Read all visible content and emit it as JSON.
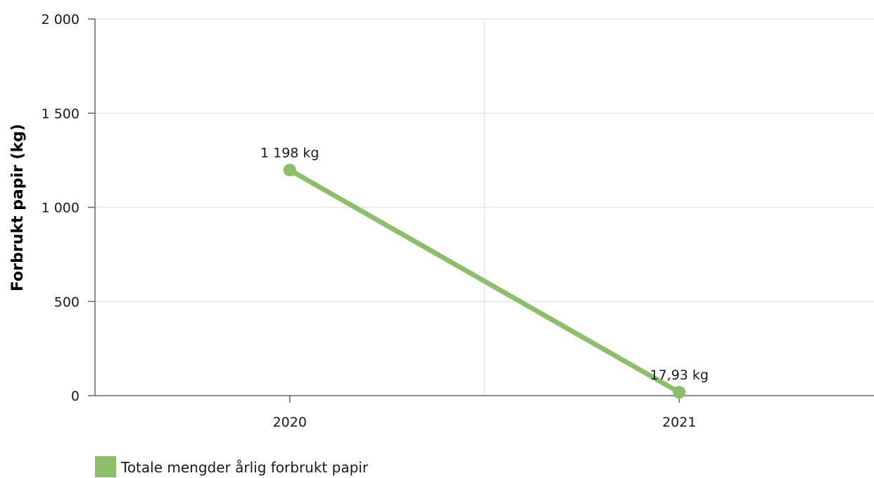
{
  "chart_data": {
    "type": "line",
    "categories": [
      "2020",
      "2021"
    ],
    "x": [
      "2020",
      "2021"
    ],
    "series": [
      {
        "name": "Totale mengder årlig forbrukt papir",
        "values": [
          1198,
          17.93
        ],
        "data_labels": [
          "1 198 kg",
          "17,93 kg"
        ],
        "color": "#8dbf6a"
      }
    ],
    "title": "",
    "xlabel": "",
    "ylabel": "Forbrukt papir (kg)",
    "ylim": [
      0,
      2000
    ],
    "yticks": [
      0,
      500,
      1000,
      1500,
      2000
    ],
    "ytick_labels": [
      "0",
      "500",
      "1 000",
      "1 500",
      "2 000"
    ],
    "grid": true,
    "legend": "bottom-left"
  }
}
